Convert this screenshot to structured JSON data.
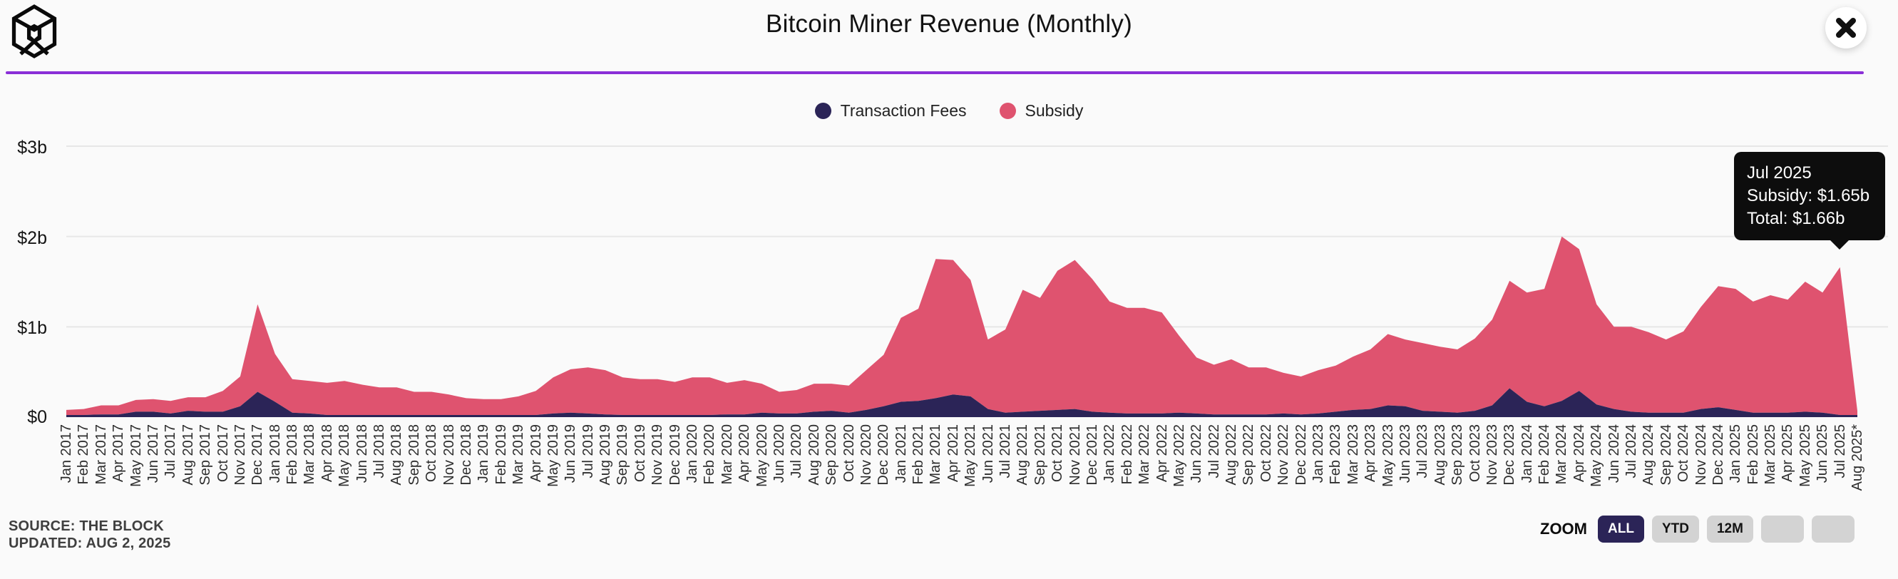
{
  "header": {
    "title": "Bitcoin Miner Revenue (Monthly)",
    "logo_icon": "the-block-logo",
    "close_icon": "close-icon"
  },
  "legend": {
    "items": [
      {
        "label": "Transaction Fees",
        "color": "#2b2457"
      },
      {
        "label": "Subsidy",
        "color": "#df536f"
      }
    ]
  },
  "colors": {
    "fees": "#2b2457",
    "subsidy": "#df536f",
    "divider_purple": "#8a2fd7",
    "active_button_bg": "#2b2457",
    "inactive_button_bg": "#d3d3d3",
    "tooltip_bg": "#0d0d0d",
    "gridline": "#e7e7e7"
  },
  "axis": {
    "yticks": [
      "$3b",
      "$2b",
      "$1b",
      "$0"
    ]
  },
  "tooltip": {
    "lines": [
      "Jul 2025",
      "Subsidy: $1.65b",
      "Total: $1.66b"
    ],
    "points_to": "Jul 2025"
  },
  "footer": {
    "source_line1": "SOURCE: THE BLOCK",
    "source_line2": "UPDATED: AUG 2, 2025",
    "zoom_label": "ZOOM",
    "zoom_buttons": [
      {
        "label": "ALL",
        "active": true
      },
      {
        "label": "YTD",
        "active": false
      },
      {
        "label": "12M",
        "active": false
      },
      {
        "label": "",
        "active": false
      },
      {
        "label": "",
        "active": false
      }
    ]
  },
  "chart_data": {
    "type": "area",
    "stacked": true,
    "title": "Bitcoin Miner Revenue (Monthly)",
    "unit": "USD billions",
    "ylim": [
      0,
      3
    ],
    "ytick_values": [
      0,
      1,
      2,
      3
    ],
    "grid": true,
    "legend_position": "top",
    "categories": [
      "Jan 2017",
      "Feb 2017",
      "Mar 2017",
      "Apr 2017",
      "May 2017",
      "Jun 2017",
      "Jul 2017",
      "Aug 2017",
      "Sep 2017",
      "Oct 2017",
      "Nov 2017",
      "Dec 2017",
      "Jan 2018",
      "Feb 2018",
      "Mar 2018",
      "Apr 2018",
      "May 2018",
      "Jun 2018",
      "Jul 2018",
      "Aug 2018",
      "Sep 2018",
      "Oct 2018",
      "Nov 2018",
      "Dec 2018",
      "Jan 2019",
      "Feb 2019",
      "Mar 2019",
      "Apr 2019",
      "May 2019",
      "Jun 2019",
      "Jul 2019",
      "Aug 2019",
      "Sep 2019",
      "Oct 2019",
      "Nov 2019",
      "Dec 2019",
      "Jan 2020",
      "Feb 2020",
      "Mar 2020",
      "Apr 2020",
      "May 2020",
      "Jun 2020",
      "Jul 2020",
      "Aug 2020",
      "Sep 2020",
      "Oct 2020",
      "Nov 2020",
      "Dec 2020",
      "Jan 2021",
      "Feb 2021",
      "Mar 2021",
      "Apr 2021",
      "May 2021",
      "Jun 2021",
      "Jul 2021",
      "Aug 2021",
      "Sep 2021",
      "Oct 2021",
      "Nov 2021",
      "Dec 2021",
      "Jan 2022",
      "Feb 2022",
      "Mar 2022",
      "Apr 2022",
      "May 2022",
      "Jun 2022",
      "Jul 2022",
      "Aug 2022",
      "Sep 2022",
      "Oct 2022",
      "Nov 2022",
      "Dec 2022",
      "Jan 2023",
      "Feb 2023",
      "Mar 2023",
      "Apr 2023",
      "May 2023",
      "Jun 2023",
      "Jul 2023",
      "Aug 2023",
      "Sep 2023",
      "Oct 2023",
      "Nov 2023",
      "Dec 2023",
      "Jan 2024",
      "Feb 2024",
      "Mar 2024",
      "Apr 2024",
      "May 2024",
      "Jun 2024",
      "Jul 2024",
      "Aug 2024",
      "Sep 2024",
      "Oct 2024",
      "Nov 2024",
      "Dec 2024",
      "Jan 2025",
      "Feb 2025",
      "Mar 2025",
      "Apr 2025",
      "May 2025",
      "Jun 2025",
      "Jul 2025",
      "Aug 2025*"
    ],
    "series": [
      {
        "name": "Transaction Fees",
        "color": "#2b2457",
        "values": [
          0.02,
          0.02,
          0.03,
          0.03,
          0.06,
          0.06,
          0.04,
          0.07,
          0.06,
          0.06,
          0.12,
          0.28,
          0.17,
          0.05,
          0.04,
          0.02,
          0.02,
          0.02,
          0.01,
          0.01,
          0.01,
          0.01,
          0.01,
          0.01,
          0.01,
          0.01,
          0.01,
          0.02,
          0.04,
          0.05,
          0.04,
          0.03,
          0.02,
          0.02,
          0.02,
          0.02,
          0.02,
          0.02,
          0.03,
          0.03,
          0.05,
          0.04,
          0.04,
          0.06,
          0.07,
          0.05,
          0.08,
          0.12,
          0.17,
          0.18,
          0.21,
          0.25,
          0.23,
          0.09,
          0.05,
          0.06,
          0.07,
          0.08,
          0.09,
          0.06,
          0.05,
          0.04,
          0.04,
          0.04,
          0.05,
          0.04,
          0.03,
          0.03,
          0.03,
          0.03,
          0.04,
          0.03,
          0.04,
          0.06,
          0.08,
          0.09,
          0.13,
          0.12,
          0.07,
          0.06,
          0.05,
          0.07,
          0.13,
          0.32,
          0.17,
          0.12,
          0.18,
          0.29,
          0.14,
          0.09,
          0.06,
          0.05,
          0.05,
          0.05,
          0.09,
          0.11,
          0.08,
          0.05,
          0.05,
          0.05,
          0.06,
          0.05,
          0.01,
          0.003
        ]
      },
      {
        "name": "Subsidy",
        "color": "#df536f",
        "values": [
          0.06,
          0.07,
          0.1,
          0.1,
          0.13,
          0.14,
          0.14,
          0.15,
          0.16,
          0.23,
          0.33,
          0.97,
          0.53,
          0.37,
          0.36,
          0.36,
          0.38,
          0.34,
          0.32,
          0.32,
          0.27,
          0.27,
          0.24,
          0.2,
          0.19,
          0.19,
          0.22,
          0.27,
          0.4,
          0.48,
          0.51,
          0.49,
          0.42,
          0.4,
          0.4,
          0.37,
          0.42,
          0.42,
          0.35,
          0.38,
          0.32,
          0.24,
          0.26,
          0.31,
          0.3,
          0.3,
          0.44,
          0.57,
          0.93,
          1.02,
          1.54,
          1.49,
          1.29,
          0.77,
          0.92,
          1.35,
          1.25,
          1.54,
          1.65,
          1.47,
          1.23,
          1.17,
          1.17,
          1.12,
          0.85,
          0.62,
          0.55,
          0.61,
          0.52,
          0.52,
          0.45,
          0.42,
          0.48,
          0.51,
          0.59,
          0.66,
          0.79,
          0.74,
          0.75,
          0.72,
          0.7,
          0.8,
          0.95,
          1.19,
          1.21,
          1.3,
          1.82,
          1.57,
          1.11,
          0.91,
          0.94,
          0.89,
          0.81,
          0.9,
          1.13,
          1.34,
          1.34,
          1.23,
          1.3,
          1.25,
          1.44,
          1.33,
          1.65,
          0.067
        ]
      }
    ]
  }
}
